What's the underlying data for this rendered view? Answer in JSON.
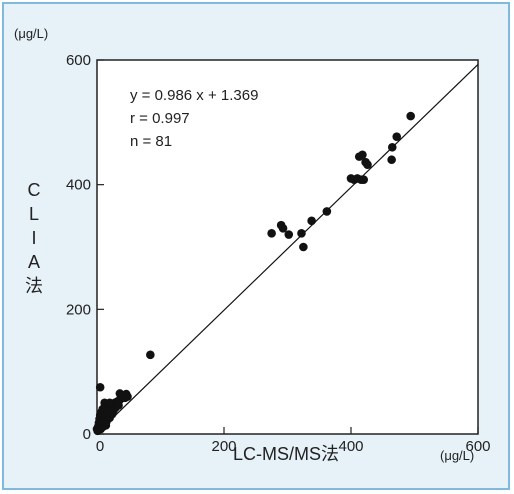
{
  "chart_data": {
    "type": "scatter",
    "title": "",
    "xlabel": "LC-MS/MS法",
    "ylabel": "CLIA法",
    "ylabel_chars": [
      "C",
      "L",
      "I",
      "A",
      "法"
    ],
    "x_unit": "(μg/L)",
    "y_unit": "(μg/L)",
    "xlim": [
      0,
      600
    ],
    "ylim": [
      0,
      600
    ],
    "x_ticks": [
      0,
      200,
      400,
      600
    ],
    "y_ticks": [
      0,
      200,
      400,
      600
    ],
    "grid": false,
    "legend": "none",
    "annotations": [
      "y = 0.986 x + 1.369",
      "r = 0.997",
      "n = 81"
    ],
    "regression": {
      "slope": 0.986,
      "intercept": 1.369
    },
    "points": [
      [
        0,
        8
      ],
      [
        1,
        5
      ],
      [
        2,
        12
      ],
      [
        3,
        18
      ],
      [
        4,
        10
      ],
      [
        4,
        24
      ],
      [
        5,
        15
      ],
      [
        5,
        30
      ],
      [
        6,
        20
      ],
      [
        6,
        8
      ],
      [
        7,
        35
      ],
      [
        7,
        14
      ],
      [
        8,
        22
      ],
      [
        8,
        28
      ],
      [
        9,
        16
      ],
      [
        9,
        40
      ],
      [
        10,
        25
      ],
      [
        10,
        12
      ],
      [
        11,
        30
      ],
      [
        11,
        18
      ],
      [
        12,
        50
      ],
      [
        12,
        22
      ],
      [
        13,
        35
      ],
      [
        13,
        28
      ],
      [
        14,
        14
      ],
      [
        14,
        42
      ],
      [
        15,
        20
      ],
      [
        15,
        32
      ],
      [
        16,
        24
      ],
      [
        16,
        38
      ],
      [
        17,
        28
      ],
      [
        18,
        45
      ],
      [
        18,
        30
      ],
      [
        19,
        34
      ],
      [
        20,
        40
      ],
      [
        20,
        26
      ],
      [
        21,
        48
      ],
      [
        22,
        36
      ],
      [
        23,
        42
      ],
      [
        24,
        32
      ],
      [
        25,
        44
      ],
      [
        26,
        38
      ],
      [
        27,
        46
      ],
      [
        28,
        50
      ],
      [
        29,
        42
      ],
      [
        30,
        48
      ],
      [
        32,
        52
      ],
      [
        34,
        46
      ],
      [
        36,
        55
      ],
      [
        38,
        58
      ],
      [
        40,
        60
      ],
      [
        42,
        62
      ],
      [
        44,
        58
      ],
      [
        46,
        64
      ],
      [
        48,
        60
      ],
      [
        20,
        50
      ],
      [
        36,
        65
      ],
      [
        5,
        75
      ],
      [
        84,
        127
      ],
      [
        275,
        322
      ],
      [
        290,
        335
      ],
      [
        293,
        330
      ],
      [
        302,
        320
      ],
      [
        322,
        322
      ],
      [
        325,
        300
      ],
      [
        338,
        342
      ],
      [
        362,
        357
      ],
      [
        400,
        410
      ],
      [
        405,
        408
      ],
      [
        410,
        410
      ],
      [
        413,
        445
      ],
      [
        416,
        408
      ],
      [
        418,
        448
      ],
      [
        420,
        408
      ],
      [
        423,
        436
      ],
      [
        426,
        432
      ],
      [
        464,
        440
      ],
      [
        465,
        460
      ],
      [
        472,
        477
      ],
      [
        494,
        510
      ],
      [
        44,
        62
      ]
    ]
  },
  "colors": {
    "frame_bg": "#e6f1f8",
    "frame_border": "#7fb9dd",
    "marker": "#111111",
    "plot_bg": "#ffffff"
  }
}
